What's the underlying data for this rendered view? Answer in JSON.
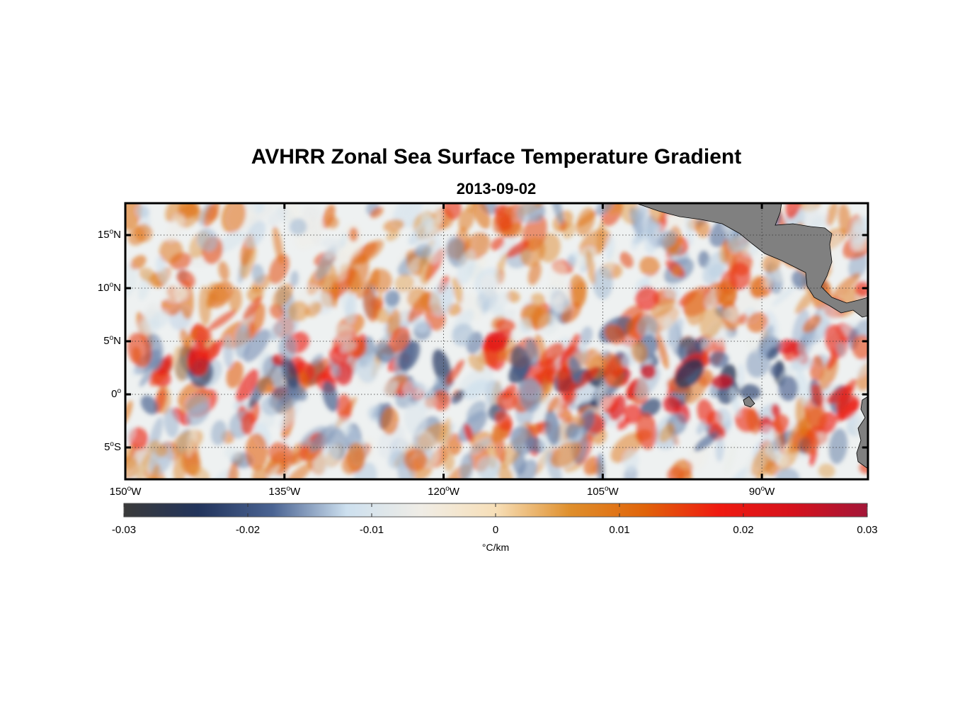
{
  "map": {
    "title": "AVHRR Zonal Sea Surface Temperature Gradient",
    "subtitle": "2013-09-02",
    "lat_labels": [
      {
        "deg": "15",
        "hemi": "N",
        "lat": 15
      },
      {
        "deg": "10",
        "hemi": "N",
        "lat": 10
      },
      {
        "deg": "5",
        "hemi": "N",
        "lat": 5
      },
      {
        "deg": "0",
        "hemi": "",
        "lat": 0
      },
      {
        "deg": "5",
        "hemi": "S",
        "lat": -5
      }
    ],
    "lon_labels": [
      {
        "deg": "150",
        "hemi": "W",
        "lon": -150
      },
      {
        "deg": "135",
        "hemi": "W",
        "lon": -135
      },
      {
        "deg": "120",
        "hemi": "W",
        "lon": -120
      },
      {
        "deg": "105",
        "hemi": "W",
        "lon": -105
      },
      {
        "deg": "90",
        "hemi": "W",
        "lon": -90
      }
    ],
    "lon_range": [
      -150,
      -80
    ],
    "lat_range": [
      -8,
      18
    ],
    "grid": true,
    "land_color": "#808080",
    "colorbar": {
      "ticks": [
        "-0.03",
        "-0.02",
        "-0.01",
        "0",
        "0.01",
        "0.02",
        "0.03"
      ],
      "unit": "°C/km",
      "range": [
        -0.03,
        0.03
      ],
      "colors": [
        "#3a3a3a",
        "#22345c",
        "#4a6392",
        "#cde0ef",
        "#f0ede6",
        "#f7dfb8",
        "#df8f2c",
        "#e0640a",
        "#ef1a10",
        "#d5121c",
        "#a31638"
      ]
    }
  }
}
